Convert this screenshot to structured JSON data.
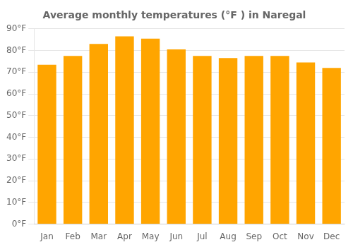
{
  "chart_data": {
    "type": "bar",
    "title": "Average monthly temperatures (°F ) in Naregal",
    "categories": [
      "Jan",
      "Feb",
      "Mar",
      "Apr",
      "May",
      "Jun",
      "Jul",
      "Aug",
      "Sep",
      "Oct",
      "Nov",
      "Dec"
    ],
    "values": [
      73.4,
      77.5,
      83.0,
      86.5,
      85.5,
      80.5,
      77.5,
      76.5,
      77.5,
      77.5,
      74.5,
      72.0
    ],
    "color": "#FFA500",
    "ylim": [
      0,
      90
    ],
    "yticks": [
      {
        "value": 0,
        "label": "0°F"
      },
      {
        "value": 10,
        "label": "10°F"
      },
      {
        "value": 20,
        "label": "20°F"
      },
      {
        "value": 30,
        "label": "30°F"
      },
      {
        "value": 40,
        "label": "40°F"
      },
      {
        "value": 50,
        "label": "50°F"
      },
      {
        "value": 60,
        "label": "60°F"
      },
      {
        "value": 70,
        "label": "70°F"
      },
      {
        "value": 80,
        "label": "80°F"
      },
      {
        "value": 90,
        "label": "90°F"
      }
    ],
    "grid": true
  }
}
